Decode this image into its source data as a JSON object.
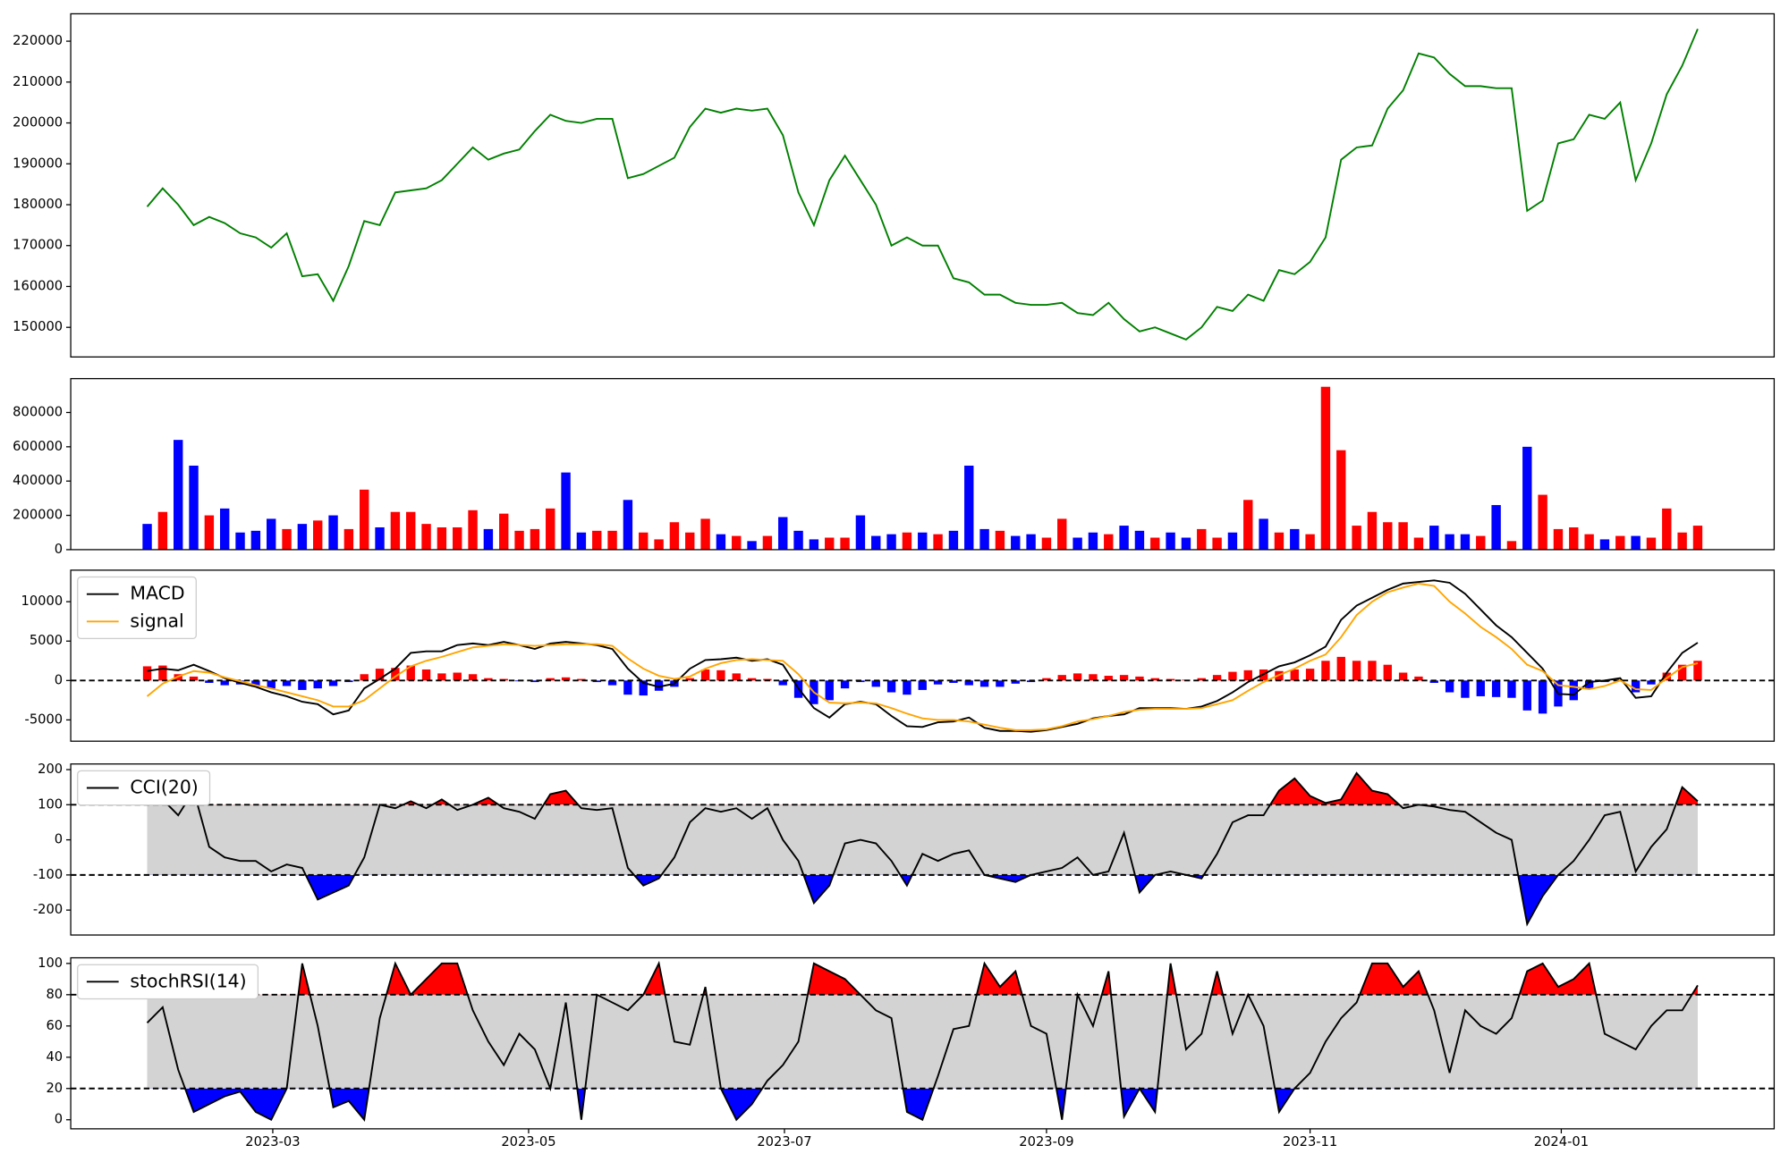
{
  "chart_data": [
    {
      "type": "line",
      "xlim": [
        -4.93,
        104.93
      ],
      "ylim": [
        142750,
        226700
      ],
      "yticks": [
        150000,
        160000,
        170000,
        180000,
        190000,
        200000,
        210000,
        220000
      ],
      "series": [
        {
          "color": "green",
          "values": [
            179500,
            184000,
            180000,
            175000,
            177000,
            175500,
            173000,
            172000,
            169500,
            173000,
            162500,
            163000,
            156500,
            165000,
            176000,
            175000,
            183000,
            183500,
            184000,
            186000,
            190000,
            194000,
            191000,
            192500,
            193500,
            198000,
            202000,
            200500,
            200000,
            201000,
            201000,
            186500,
            187500,
            189500,
            191500,
            199000,
            203500,
            202500,
            203500,
            203000,
            203500,
            197000,
            183000,
            175000,
            186000,
            192000,
            186000,
            180000,
            170000,
            172000,
            170000,
            170000,
            162000,
            161000,
            158000,
            158000,
            156000,
            155500,
            155500,
            156000,
            153500,
            153000,
            156000,
            152000,
            149000,
            150000,
            148500,
            147000,
            150000,
            155000,
            154000,
            158000,
            156500,
            164000,
            163000,
            166000,
            172000,
            191000,
            194000,
            194500,
            203500,
            208000,
            217000,
            216000,
            212000,
            209000,
            209000,
            208500,
            208500,
            178500,
            181000,
            195000,
            196000,
            202000,
            201000,
            205000,
            186000,
            195000,
            207000,
            214000,
            223000
          ]
        }
      ]
    },
    {
      "type": "bar",
      "xlim": [
        -4.93,
        104.93
      ],
      "ylim": [
        0,
        997500
      ],
      "yticks": [
        0,
        200000,
        400000,
        600000,
        800000
      ],
      "values": [
        150000,
        220000,
        640000,
        490000,
        200000,
        240000,
        100000,
        110000,
        180000,
        120000,
        150000,
        170000,
        200000,
        120000,
        350000,
        130000,
        220000,
        220000,
        150000,
        130000,
        130000,
        230000,
        120000,
        210000,
        110000,
        120000,
        240000,
        450000,
        100000,
        110000,
        110000,
        290000,
        100000,
        60000,
        160000,
        100000,
        180000,
        90000,
        80000,
        50000,
        80000,
        190000,
        110000,
        60000,
        70000,
        70000,
        200000,
        80000,
        90000,
        100000,
        100000,
        90000,
        110000,
        490000,
        120000,
        110000,
        80000,
        90000,
        70000,
        180000,
        70000,
        100000,
        90000,
        140000,
        110000,
        70000,
        100000,
        70000,
        120000,
        70000,
        100000,
        290000,
        180000,
        100000,
        120000,
        90000,
        950000,
        580000,
        140000,
        220000,
        160000,
        160000,
        70000,
        140000,
        90000,
        90000,
        80000,
        260000,
        50000,
        600000,
        320000,
        120000,
        130000,
        90000,
        60000,
        80000,
        80000,
        70000,
        240000,
        100000,
        140000
      ],
      "colors": [
        "blue",
        "red",
        "blue",
        "blue",
        "red",
        "blue",
        "blue",
        "blue",
        "blue",
        "red",
        "blue",
        "red",
        "blue",
        "red",
        "red",
        "blue",
        "red",
        "red",
        "red",
        "red",
        "red",
        "red",
        "blue",
        "red",
        "red",
        "red",
        "red",
        "blue",
        "blue",
        "red",
        "red",
        "blue",
        "red",
        "red",
        "red",
        "red",
        "red",
        "blue",
        "red",
        "blue",
        "red",
        "blue",
        "blue",
        "blue",
        "red",
        "red",
        "blue",
        "blue",
        "blue",
        "red",
        "blue",
        "red",
        "blue",
        "blue",
        "blue",
        "red",
        "blue",
        "blue",
        "red",
        "red",
        "blue",
        "blue",
        "red",
        "blue",
        "blue",
        "red",
        "blue",
        "blue",
        "red",
        "red",
        "blue",
        "red",
        "blue",
        "red",
        "blue",
        "red",
        "red",
        "red",
        "red",
        "red",
        "red",
        "red",
        "red",
        "blue",
        "blue",
        "blue",
        "red",
        "blue",
        "red",
        "blue",
        "red",
        "red",
        "red",
        "red",
        "blue",
        "red",
        "blue",
        "red",
        "red",
        "red",
        "red"
      ]
    },
    {
      "type": "line",
      "xlim": [
        -4.93,
        104.93
      ],
      "ylim": [
        -7700,
        14000
      ],
      "yticks": [
        -5000,
        0,
        5000,
        10000
      ],
      "levels": [
        0
      ],
      "series": [
        {
          "name": "MACD",
          "color": "black",
          "values": [
            1200,
            1500,
            1300,
            2000,
            1200,
            300,
            -300,
            -800,
            -1500,
            -2000,
            -2700,
            -3000,
            -4300,
            -3800,
            -1000,
            200,
            1500,
            3500,
            3700,
            3700,
            4500,
            4700,
            4500,
            4900,
            4500,
            4000,
            4700,
            4900,
            4700,
            4500,
            4000,
            1500,
            -300,
            -800,
            -400,
            1500,
            2600,
            2700,
            2900,
            2500,
            2700,
            2000,
            -1000,
            -3500,
            -4700,
            -3000,
            -2700,
            -3000,
            -4500,
            -5800,
            -5900,
            -5300,
            -5200,
            -4700,
            -6000,
            -6400,
            -6400,
            -6500,
            -6300,
            -5900,
            -5500,
            -4800,
            -4500,
            -4300,
            -3500,
            -3500,
            -3500,
            -3600,
            -3300,
            -2600,
            -1500,
            -200,
            800,
            1800,
            2300,
            3200,
            4300,
            7700,
            9500,
            10500,
            11500,
            12300,
            12500,
            12700,
            12400,
            11000,
            9000,
            7000,
            5500,
            3500,
            1500,
            -1700,
            -1800,
            -200,
            0,
            300,
            -2200,
            -2000,
            1000,
            3500,
            4800
          ]
        },
        {
          "name": "signal",
          "color": "orange",
          "values": [
            -2000,
            -400,
            500,
            1200,
            1000,
            400,
            -100,
            -600,
            -1000,
            -1500,
            -2000,
            -2500,
            -3300,
            -3300,
            -2500,
            -1000,
            500,
            1800,
            2500,
            3000,
            3600,
            4200,
            4400,
            4600,
            4500,
            4400,
            4500,
            4600,
            4600,
            4600,
            4400,
            2800,
            1500,
            600,
            200,
            500,
            1500,
            2200,
            2600,
            2700,
            2600,
            2500,
            800,
            -1500,
            -2800,
            -2900,
            -2800,
            -2900,
            -3500,
            -4200,
            -4800,
            -5000,
            -5000,
            -5200,
            -5600,
            -6000,
            -6300,
            -6300,
            -6200,
            -5800,
            -5200,
            -4900,
            -4500,
            -4000,
            -3700,
            -3600,
            -3600,
            -3600,
            -3500,
            -3000,
            -2500,
            -1300,
            -200,
            700,
            1500,
            2500,
            3300,
            5500,
            8300,
            10000,
            11200,
            11800,
            12300,
            12000,
            10000,
            8500,
            6800,
            5500,
            4000,
            2000,
            1200,
            -600,
            -800,
            -1100,
            -700,
            0,
            -1100,
            -1200,
            300,
            1700,
            2200
          ]
        },
        {
          "type": "bar",
          "up_color": "red",
          "down_color": "blue",
          "values": [
            1800,
            1900,
            800,
            500,
            -300,
            -600,
            -500,
            -800,
            -1000,
            -700,
            -1200,
            -1000,
            -700,
            -200,
            800,
            1500,
            1600,
            1900,
            1400,
            900,
            1000,
            800,
            300,
            200,
            -100,
            -200,
            300,
            400,
            200,
            -200,
            -600,
            -1800,
            -1900,
            -1300,
            -800,
            300,
            1400,
            1300,
            900,
            300,
            200,
            -600,
            -2200,
            -3000,
            -2500,
            -1000,
            -200,
            -800,
            -1500,
            -1800,
            -1200,
            -500,
            -300,
            -600,
            -800,
            -800,
            -400,
            -200,
            300,
            700,
            900,
            800,
            600,
            700,
            500,
            300,
            200,
            100,
            300,
            700,
            1100,
            1300,
            1400,
            1200,
            1400,
            1500,
            2500,
            3000,
            2500,
            2500,
            2000,
            1000,
            500,
            -300,
            -1500,
            -2200,
            -2000,
            -2100,
            -2200,
            -3800,
            -4200,
            -3300,
            -2500,
            -1000,
            -200,
            100,
            -1500,
            -500,
            1000,
            2000,
            2500
          ]
        }
      ]
    },
    {
      "type": "line",
      "xlim": [
        -4.93,
        104.93
      ],
      "ylim": [
        -271,
        216
      ],
      "yticks": [
        -200,
        -100,
        0,
        100,
        200
      ],
      "levels": [
        -100,
        100
      ],
      "band_color": "lightgray",
      "above_color": "red",
      "below_color": "blue",
      "series": [
        {
          "name": "CCI(20)",
          "color": "black",
          "values": [
            100,
            115,
            70,
            140,
            -20,
            -50,
            -60,
            -60,
            -90,
            -70,
            -80,
            -170,
            -150,
            -130,
            -50,
            100,
            90,
            110,
            90,
            115,
            85,
            100,
            120,
            90,
            80,
            60,
            130,
            140,
            90,
            85,
            90,
            -80,
            -130,
            -110,
            -50,
            50,
            90,
            80,
            90,
            60,
            90,
            0,
            -60,
            -180,
            -130,
            -10,
            0,
            -10,
            -60,
            -130,
            -40,
            -60,
            -40,
            -30,
            -100,
            -110,
            -120,
            -100,
            -90,
            -80,
            -50,
            -100,
            -90,
            20,
            -150,
            -100,
            -90,
            -100,
            -110,
            -40,
            50,
            70,
            70,
            140,
            175,
            125,
            105,
            115,
            190,
            140,
            130,
            90,
            100,
            95,
            85,
            80,
            50,
            20,
            0,
            -240,
            -160,
            -100,
            -60,
            0,
            70,
            80,
            -90,
            -20,
            30,
            150,
            110
          ]
        }
      ]
    },
    {
      "type": "line",
      "xlim": [
        -4.93,
        104.93
      ],
      "ylim": [
        -5.8,
        103.6
      ],
      "yticks": [
        0,
        20,
        40,
        60,
        80,
        100
      ],
      "levels": [
        20,
        80
      ],
      "band_color": "lightgray",
      "above_color": "red",
      "below_color": "blue",
      "xticks": [
        {
          "value": 8.1,
          "label": "2023-03"
        },
        {
          "value": 24.6,
          "label": "2023-05"
        },
        {
          "value": 41.1,
          "label": "2023-07"
        },
        {
          "value": 58.0,
          "label": "2023-09"
        },
        {
          "value": 75.0,
          "label": "2023-11"
        },
        {
          "value": 91.2,
          "label": "2024-01"
        }
      ],
      "series": [
        {
          "name": "stochRSI(14)",
          "color": "black",
          "values": [
            62,
            72,
            32,
            5,
            10,
            15,
            18,
            5,
            0,
            20,
            100,
            60,
            8,
            12,
            0,
            65,
            100,
            80,
            90,
            100,
            100,
            70,
            50,
            35,
            55,
            45,
            20,
            75,
            0,
            80,
            75,
            70,
            80,
            100,
            50,
            48,
            85,
            20,
            0,
            10,
            25,
            35,
            50,
            100,
            95,
            90,
            80,
            70,
            65,
            5,
            0,
            28,
            58,
            60,
            100,
            85,
            95,
            60,
            55,
            0,
            80,
            60,
            95,
            2,
            20,
            5,
            100,
            45,
            55,
            95,
            55,
            80,
            60,
            5,
            20,
            30,
            50,
            65,
            75,
            100,
            100,
            85,
            95,
            70,
            30,
            70,
            60,
            55,
            65,
            95,
            100,
            85,
            90,
            100,
            55,
            50,
            45,
            60,
            70,
            70,
            86
          ]
        }
      ]
    }
  ]
}
